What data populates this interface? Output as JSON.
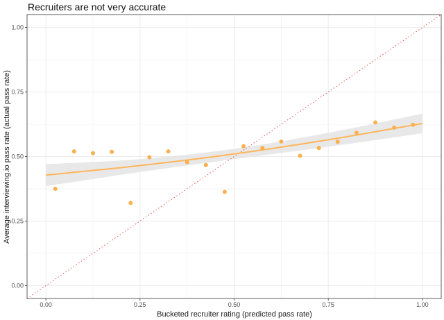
{
  "chart_data": {
    "type": "scatter",
    "title": "Recruiters are not very accurate",
    "xlabel": "Bucketed recruiter rating (predicted pass rate)",
    "ylabel": "Average interviewing.io pass rate (actual pass rate)",
    "xlim": [
      -0.05,
      1.05
    ],
    "ylim": [
      -0.05,
      1.05
    ],
    "xticks": [
      0.0,
      0.25,
      0.5,
      0.75,
      1.0
    ],
    "yticks": [
      0.0,
      0.25,
      0.5,
      0.75,
      1.0
    ],
    "xtick_labels": [
      "0.00",
      "0.25",
      "0.50",
      "0.75",
      "1.00"
    ],
    "ytick_labels": [
      "0.00",
      "0.25",
      "0.50",
      "0.75",
      "1.00"
    ],
    "grid": true,
    "points": [
      {
        "x": 0.025,
        "y": 0.375
      },
      {
        "x": 0.075,
        "y": 0.52
      },
      {
        "x": 0.125,
        "y": 0.513
      },
      {
        "x": 0.175,
        "y": 0.518
      },
      {
        "x": 0.225,
        "y": 0.32
      },
      {
        "x": 0.275,
        "y": 0.497
      },
      {
        "x": 0.325,
        "y": 0.52
      },
      {
        "x": 0.375,
        "y": 0.478
      },
      {
        "x": 0.425,
        "y": 0.467
      },
      {
        "x": 0.475,
        "y": 0.363
      },
      {
        "x": 0.525,
        "y": 0.54
      },
      {
        "x": 0.575,
        "y": 0.533
      },
      {
        "x": 0.625,
        "y": 0.558
      },
      {
        "x": 0.675,
        "y": 0.503
      },
      {
        "x": 0.725,
        "y": 0.533
      },
      {
        "x": 0.775,
        "y": 0.557
      },
      {
        "x": 0.825,
        "y": 0.592
      },
      {
        "x": 0.875,
        "y": 0.632
      },
      {
        "x": 0.925,
        "y": 0.612
      },
      {
        "x": 0.975,
        "y": 0.623
      }
    ],
    "fit_line": {
      "x": [
        0.0,
        0.25,
        0.5,
        0.75,
        1.0
      ],
      "y": [
        0.428,
        0.465,
        0.51,
        0.565,
        0.628
      ],
      "ci_lower": [
        0.385,
        0.44,
        0.49,
        0.538,
        0.59
      ],
      "ci_upper": [
        0.47,
        0.49,
        0.53,
        0.592,
        0.666
      ]
    },
    "reference_line": {
      "x": [
        -0.05,
        1.05
      ],
      "y": [
        -0.05,
        1.05
      ],
      "style": "dotted"
    },
    "colors": {
      "points": "#f9b04f",
      "fit_line": "#ffb55a",
      "ci_band": "#e5e5e5",
      "reference_line": "#e8534a",
      "grid": "#ebebeb",
      "panel_border": "#333333"
    }
  }
}
